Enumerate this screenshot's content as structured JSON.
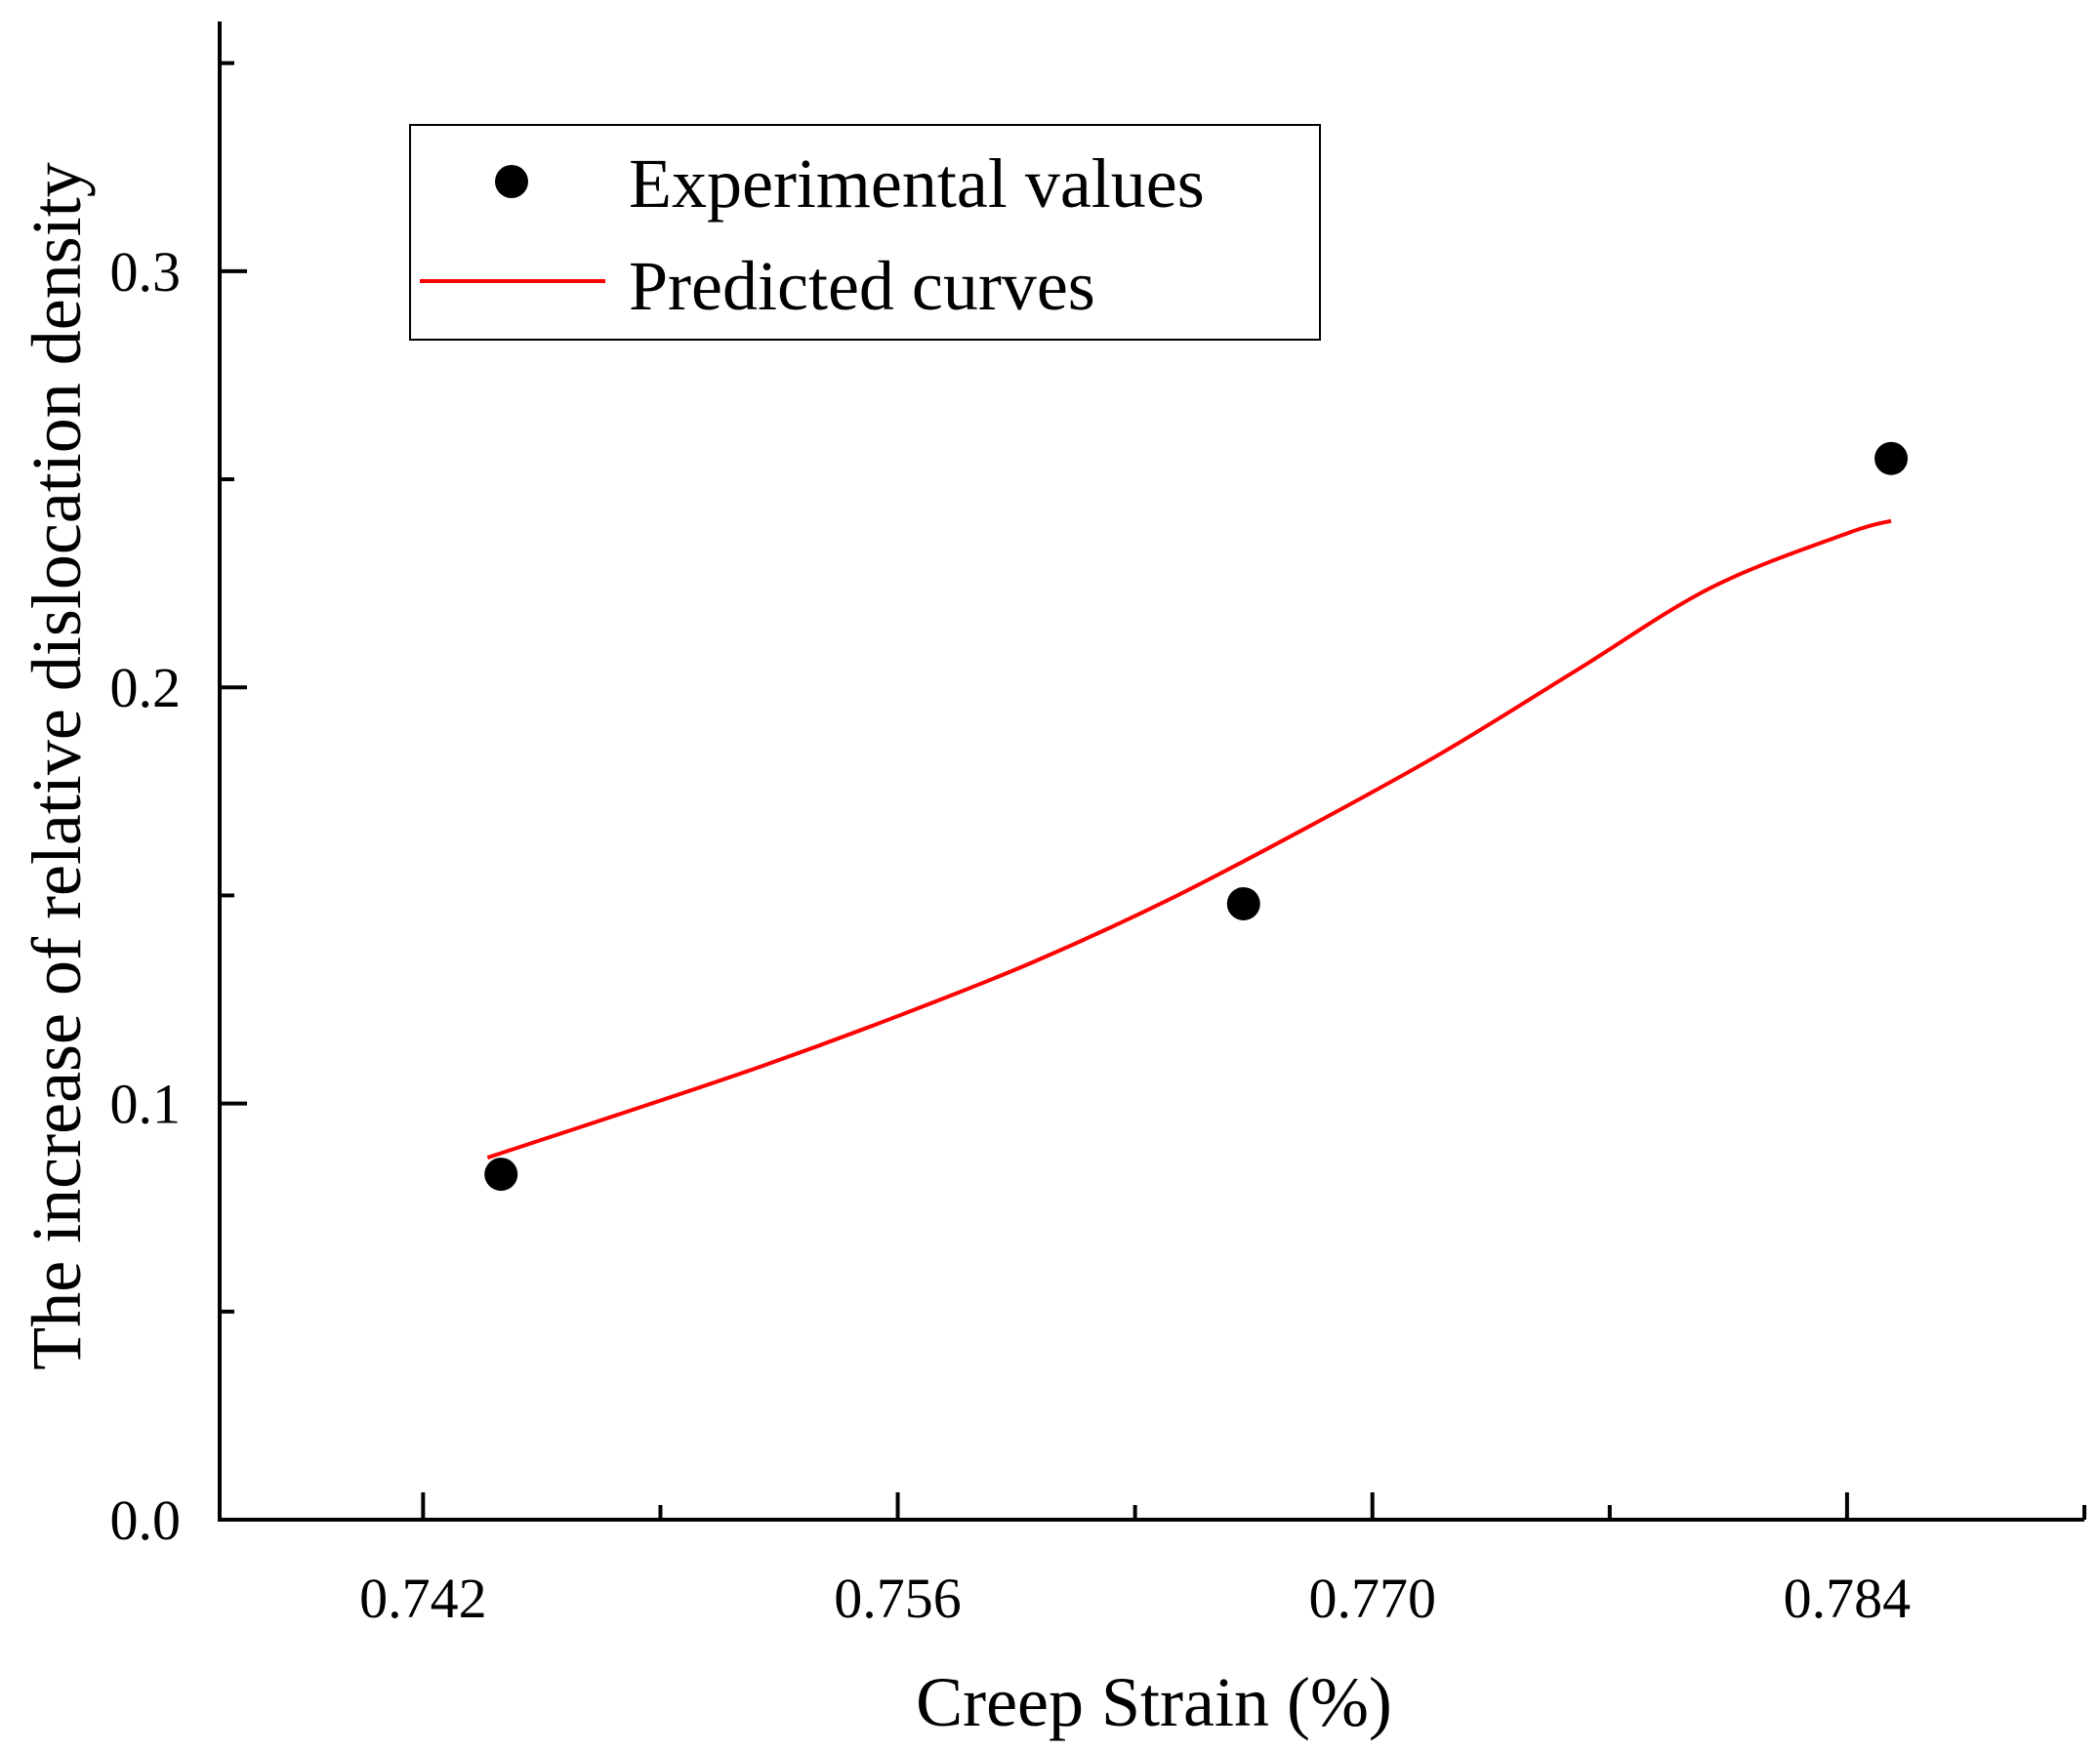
{
  "chart_data": {
    "type": "scatter",
    "xlabel": "Creep Strain (%)",
    "ylabel": "The increase of relative dislocation density",
    "xlim": [
      0.736,
      0.791
    ],
    "ylim": [
      0.0,
      0.36
    ],
    "x_ticks": [
      0.742,
      0.756,
      0.77,
      0.784
    ],
    "x_tick_labels": [
      "0.742",
      "0.756",
      "0.770",
      "0.784"
    ],
    "x_minor_ticks": [
      0.749,
      0.763,
      0.777,
      0.791
    ],
    "y_ticks": [
      0.0,
      0.1,
      0.2,
      0.3
    ],
    "y_tick_labels": [
      "0.0",
      "0.1",
      "0.2",
      "0.3"
    ],
    "y_minor_ticks": [
      0.05,
      0.15,
      0.25,
      0.35
    ],
    "grid": false,
    "legend_position": "top-left",
    "series": [
      {
        "name": "Experimental values",
        "kind": "scatter",
        "color": "#000000",
        "x": [
          0.7443,
          0.7662,
          0.7853
        ],
        "y": [
          0.083,
          0.148,
          0.255
        ]
      },
      {
        "name": "Predicted curves",
        "kind": "line",
        "color": "#ff0000",
        "x": [
          0.7439,
          0.748,
          0.752,
          0.756,
          0.76,
          0.764,
          0.768,
          0.772,
          0.776,
          0.78,
          0.784,
          0.7853
        ],
        "y": [
          0.087,
          0.098,
          0.109,
          0.121,
          0.134,
          0.149,
          0.166,
          0.184,
          0.204,
          0.224,
          0.237,
          0.24
        ]
      }
    ]
  }
}
